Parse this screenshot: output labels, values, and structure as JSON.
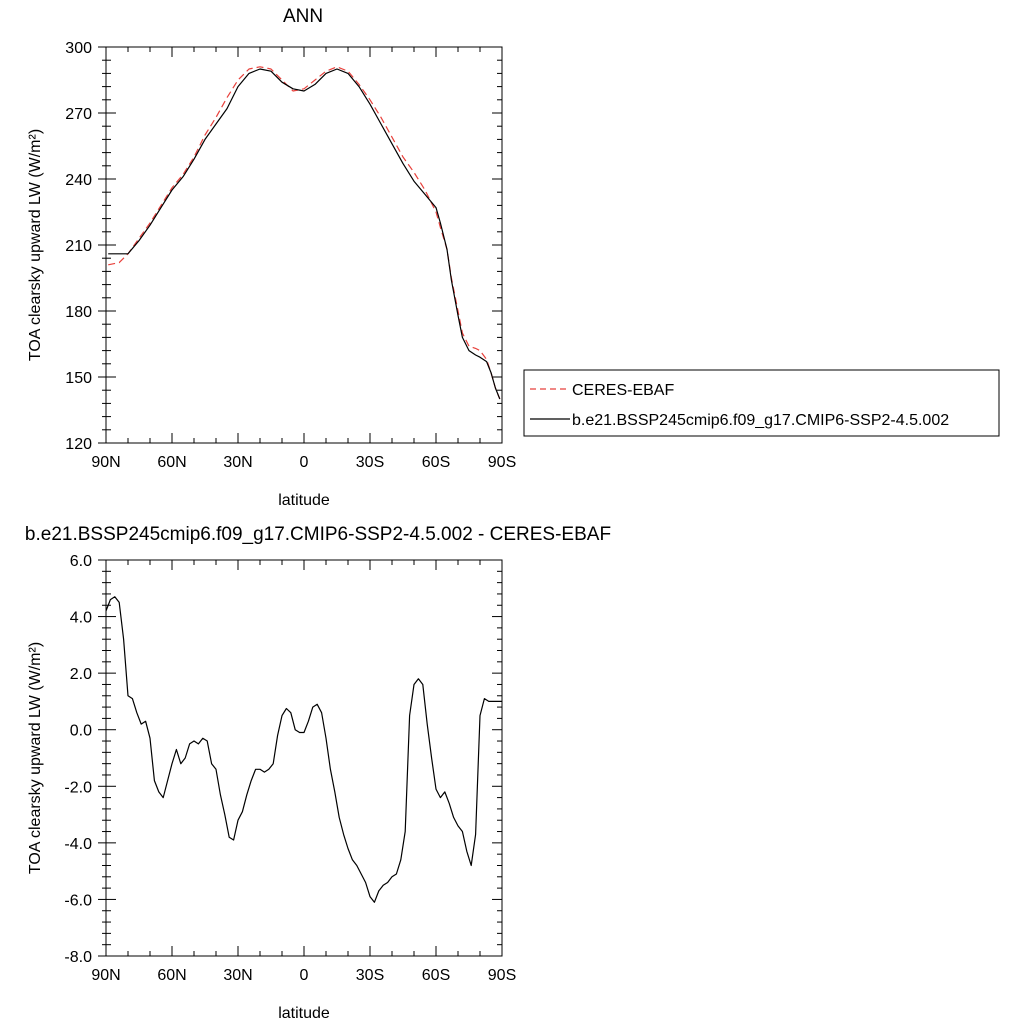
{
  "chart_data": [
    {
      "type": "line",
      "title": "ANN",
      "xlabel": "latitude",
      "ylabel": "TOA clearsky upward LW (W/m²)",
      "ylim": [
        120,
        300
      ],
      "xlim": [
        90,
        -90
      ],
      "yticks": [
        "120",
        "150",
        "180",
        "210",
        "240",
        "270",
        "300"
      ],
      "xticks": [
        {
          "value": 90,
          "label": "90N"
        },
        {
          "value": 60,
          "label": "60N"
        },
        {
          "value": 30,
          "label": "30N"
        },
        {
          "value": 0,
          "label": "0"
        },
        {
          "value": -30,
          "label": "30S"
        },
        {
          "value": -60,
          "label": "60S"
        },
        {
          "value": -90,
          "label": "90S"
        }
      ],
      "grid": false,
      "legend_position": "right",
      "series": [
        {
          "name": "CERES-EBAF",
          "color": "#e8413c",
          "dash": "dashed",
          "x": [
            89,
            84,
            80,
            75,
            70,
            65,
            60,
            55,
            50,
            45,
            40,
            35,
            30,
            25,
            20,
            15,
            10,
            5,
            0,
            -5,
            -10,
            -15,
            -20,
            -25,
            -30,
            -35,
            -40,
            -45,
            -50,
            -55,
            -60,
            -62,
            -65,
            -67,
            -70,
            -72,
            -75,
            -78,
            -80,
            -83,
            -85,
            -87,
            -89
          ],
          "y": [
            201,
            202,
            206,
            213,
            220,
            228,
            236,
            242,
            250,
            260,
            268,
            277,
            285,
            290,
            291,
            290,
            285,
            280,
            281,
            285,
            289,
            291,
            289,
            283,
            276,
            268,
            259,
            250,
            243,
            235,
            225,
            218,
            208,
            195,
            180,
            170,
            164,
            163,
            162,
            158,
            152,
            145,
            140
          ]
        },
        {
          "name": "b.e21.BSSP245cmip6.f09_g17.CMIP6-SSP2-4.5.002",
          "color": "#000000",
          "dash": "solid",
          "x": [
            89,
            84,
            80,
            75,
            70,
            65,
            60,
            55,
            50,
            45,
            40,
            35,
            30,
            25,
            20,
            15,
            10,
            5,
            0,
            -5,
            -10,
            -15,
            -20,
            -25,
            -30,
            -35,
            -40,
            -45,
            -50,
            -55,
            -60,
            -62,
            -65,
            -67,
            -70,
            -72,
            -75,
            -78,
            -80,
            -83,
            -85,
            -87,
            -89
          ],
          "y": [
            206,
            206,
            206,
            212,
            219,
            227,
            235,
            241,
            249,
            258,
            265,
            272,
            282,
            288,
            290,
            289,
            284,
            281,
            280,
            283,
            288,
            290,
            288,
            282,
            274,
            265,
            256,
            247,
            239,
            233,
            227,
            220,
            208,
            194,
            178,
            168,
            162,
            160,
            159,
            157,
            152,
            145,
            140
          ]
        }
      ]
    },
    {
      "type": "line",
      "title": "b.e21.BSSP245cmip6.f09_g17.CMIP6-SSP2-4.5.002 - CERES-EBAF",
      "xlabel": "latitude",
      "ylabel": "TOA clearsky upward LW (W/m²)",
      "ylim": [
        -8,
        6
      ],
      "xlim": [
        90,
        -90
      ],
      "yticks": [
        "-8.0",
        "-6.0",
        "-4.0",
        "-2.0",
        "0.0",
        "2.0",
        "4.0",
        "6.0"
      ],
      "xticks": [
        {
          "value": 90,
          "label": "90N"
        },
        {
          "value": 60,
          "label": "60N"
        },
        {
          "value": 30,
          "label": "30N"
        },
        {
          "value": 0,
          "label": "0"
        },
        {
          "value": -30,
          "label": "30S"
        },
        {
          "value": -60,
          "label": "60S"
        },
        {
          "value": -90,
          "label": "90S"
        }
      ],
      "grid": false,
      "series": [
        {
          "color": "#000000",
          "dash": "solid",
          "x": [
            90,
            88,
            86,
            84,
            82,
            80,
            78,
            76,
            74,
            72,
            70,
            68,
            66,
            64,
            62,
            60,
            58,
            56,
            54,
            52,
            50,
            48,
            46,
            44,
            42,
            40,
            38,
            36,
            34,
            32,
            30,
            28,
            26,
            24,
            22,
            20,
            18,
            16,
            14,
            12,
            10,
            8,
            6,
            4,
            2,
            0,
            -2,
            -4,
            -6,
            -8,
            -10,
            -12,
            -14,
            -16,
            -18,
            -20,
            -22,
            -24,
            -26,
            -28,
            -30,
            -32,
            -34,
            -36,
            -38,
            -40,
            -42,
            -44,
            -46,
            -48,
            -50,
            -52,
            -54,
            -56,
            -58,
            -60,
            -62,
            -64,
            -66,
            -68,
            -70,
            -72,
            -74,
            -76,
            -78,
            -80,
            -82,
            -84,
            -86,
            -88,
            -90
          ],
          "y": [
            4.2,
            4.6,
            4.7,
            4.5,
            3.2,
            1.2,
            1.1,
            0.6,
            0.2,
            0.3,
            -0.3,
            -1.8,
            -2.2,
            -2.4,
            -1.8,
            -1.2,
            -0.7,
            -1.2,
            -1.0,
            -0.5,
            -0.4,
            -0.5,
            -0.3,
            -0.4,
            -1.2,
            -1.4,
            -2.3,
            -3.0,
            -3.8,
            -3.9,
            -3.2,
            -2.9,
            -2.3,
            -1.8,
            -1.4,
            -1.4,
            -1.5,
            -1.4,
            -1.2,
            -0.2,
            0.5,
            0.75,
            0.6,
            0.0,
            -0.1,
            -0.1,
            0.3,
            0.8,
            0.9,
            0.6,
            -0.3,
            -1.4,
            -2.2,
            -3.1,
            -3.7,
            -4.2,
            -4.6,
            -4.8,
            -5.1,
            -5.4,
            -5.9,
            -6.1,
            -5.7,
            -5.5,
            -5.4,
            -5.2,
            -5.1,
            -4.6,
            -3.6,
            0.5,
            1.6,
            1.8,
            1.6,
            0.2,
            -1.0,
            -2.1,
            -2.4,
            -2.2,
            -2.6,
            -3.1,
            -3.4,
            -3.6,
            -4.3,
            -4.8,
            -3.7,
            0.5,
            1.1,
            1.0,
            1.0,
            1.0,
            1.0
          ]
        }
      ]
    }
  ]
}
